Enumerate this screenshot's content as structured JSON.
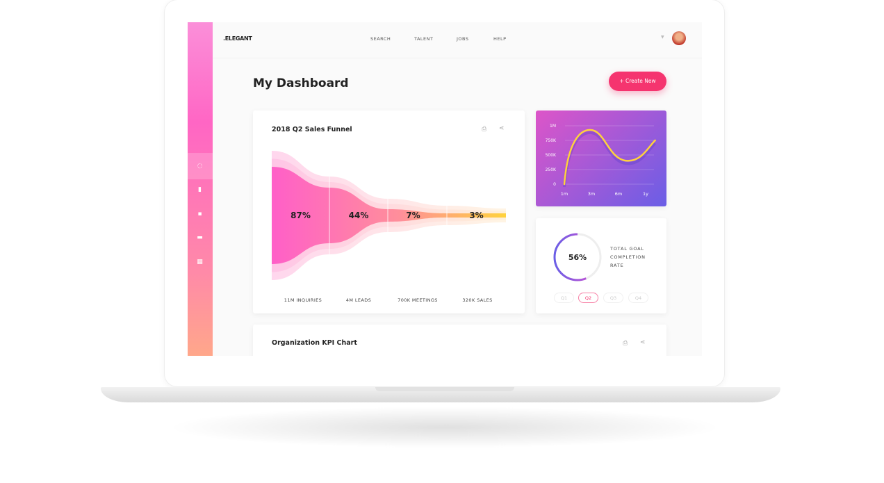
{
  "header": {
    "logo": ".ELEGANT",
    "nav": [
      "SEARCH",
      "TALENT",
      "JOBS",
      "HELP"
    ]
  },
  "page_title": "My Dashboard",
  "create_button": "+ Create New",
  "sidebar": {
    "icons": [
      "circle-icon",
      "bookmark-icon",
      "book-icon",
      "briefcase-icon",
      "calendar-icon"
    ],
    "active_index": 0
  },
  "funnel": {
    "title": "2018 Q2 Sales Funnel",
    "stages": [
      {
        "percent": "87%",
        "label": "11M INQUIRIES"
      },
      {
        "percent": "44%",
        "label": "4M LEADS"
      },
      {
        "percent": "7%",
        "label": "700K MEETINGS"
      },
      {
        "percent": "3%",
        "label": "320K SALES"
      }
    ]
  },
  "chart_data": {
    "type": "line",
    "x_ticks": [
      "1m",
      "3m",
      "6m",
      "1y"
    ],
    "y_ticks": [
      "0",
      "250K",
      "500K",
      "750K",
      "1M"
    ],
    "ylim": [
      0,
      1000000
    ],
    "grid": true,
    "series": [
      {
        "points": [
          [
            0,
            0
          ],
          [
            0.95,
            930000
          ],
          [
            2.35,
            400000
          ],
          [
            3.35,
            750000
          ]
        ]
      }
    ],
    "colors": {
      "line": "#ffd23c",
      "bg_from": "#dd55c8",
      "bg_to": "#6a5ee6"
    }
  },
  "goal": {
    "value": 0.56,
    "percent_label": "56%",
    "label_lines": [
      "TOTAL GOAL",
      "COMPLETION",
      "RATE"
    ],
    "quarters": [
      "Q1",
      "Q2",
      "Q3",
      "Q4"
    ],
    "selected": "Q2"
  },
  "kpi": {
    "title": "Organization KPI Chart"
  }
}
